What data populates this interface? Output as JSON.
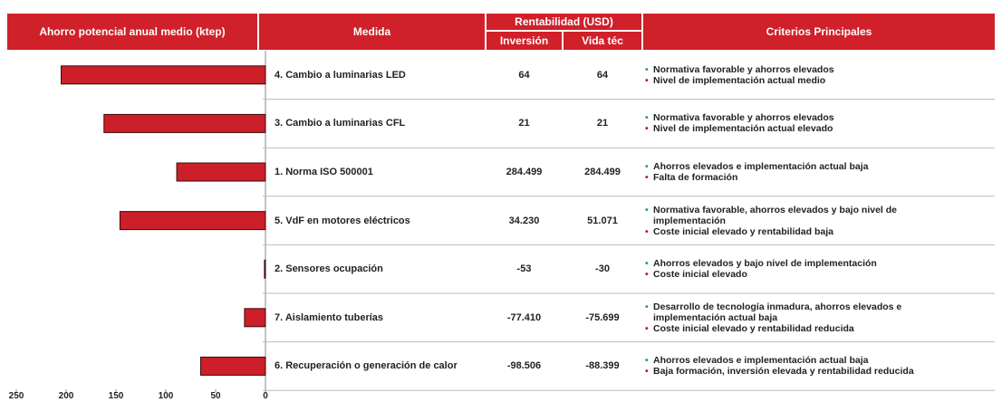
{
  "chart_data": {
    "type": "bar",
    "orientation": "horizontal",
    "title": "Ahorro potencial anual medio (ktep)",
    "categories": [
      "4. Cambio a luminarias LED",
      "3. Cambio a luminarias CFL",
      "1. Norma ISO 500001",
      "5. VdF en motores eléctricos",
      "2. Sensores ocupación",
      "7. Aislamiento tuberías",
      "6. Recuperación o generación de calor"
    ],
    "values": [
      205,
      162,
      89,
      146,
      1,
      21,
      65
    ],
    "color": "#cc1f2a",
    "xlim": [
      250,
      0
    ],
    "xticks": [
      250,
      200,
      150,
      100,
      50,
      0
    ]
  },
  "table": {
    "headers": {
      "measure": "Medida",
      "profitability": "Rentabilidad (USD)",
      "investment": "Inversión",
      "lifetime": "Vida téc",
      "criteria": "Criterios Principales"
    },
    "bullet": "•",
    "bullet_colors": [
      "#2e9e3e",
      "#c0141c"
    ],
    "rows": [
      {
        "investment": "64",
        "lifetime": "64",
        "criteria": [
          "Normativa favorable y ahorros elevados",
          "Nivel de implementación actual medio"
        ]
      },
      {
        "investment": "21",
        "lifetime": "21",
        "criteria": [
          "Normativa favorable y ahorros elevados",
          "Nivel de implementación actual elevado"
        ]
      },
      {
        "investment": "284.499",
        "lifetime": "284.499",
        "criteria": [
          "Ahorros elevados e implementación actual baja",
          "Falta de formación"
        ]
      },
      {
        "investment": "34.230",
        "lifetime": "51.071",
        "criteria": [
          "Normativa favorable, ahorros elevados y bajo nivel de implementación",
          "Coste inicial elevado y rentabilidad baja"
        ]
      },
      {
        "investment": "-53",
        "lifetime": "-30",
        "criteria": [
          "Ahorros elevados y bajo nivel de implementación",
          "Coste inicial elevado"
        ]
      },
      {
        "investment": "-77.410",
        "lifetime": "-75.699",
        "criteria": [
          "Desarrollo de tecnología inmadura, ahorros elevados  e implementación actual baja",
          "Coste inicial elevado y rentabilidad reducida"
        ]
      },
      {
        "investment": "-98.506",
        "lifetime": "-88.399",
        "criteria": [
          "Ahorros elevados  e implementación actual baja",
          "Baja formación, inversión elevada y rentabilidad reducida"
        ]
      }
    ]
  }
}
